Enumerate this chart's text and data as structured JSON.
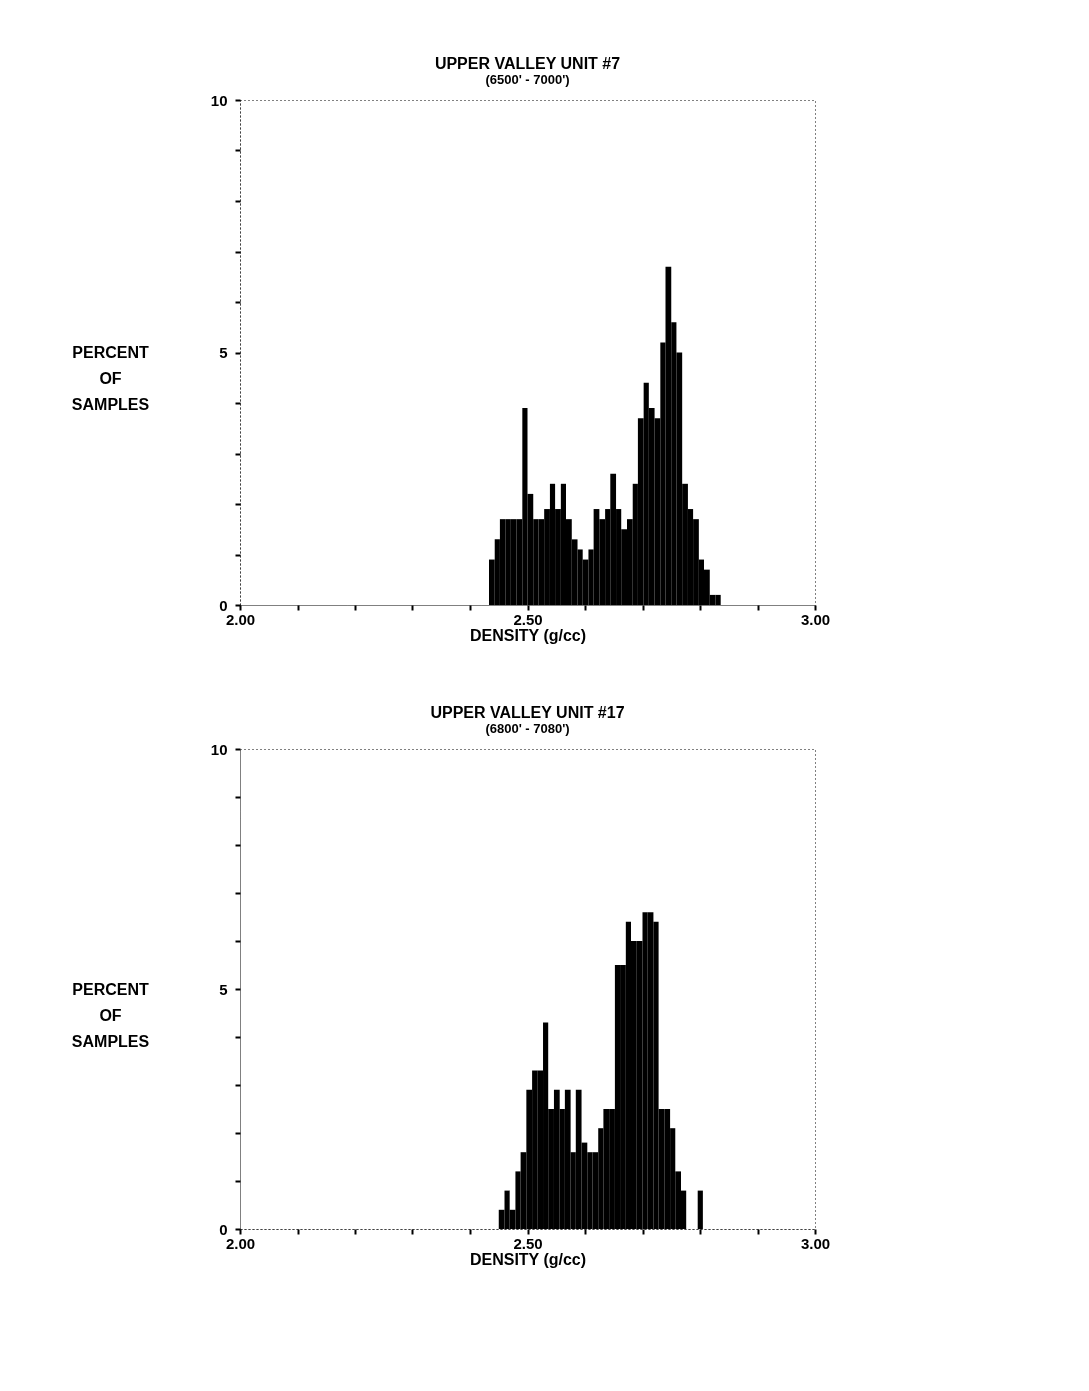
{
  "chart_data": [
    {
      "type": "histogram",
      "title": "UPPER VALLEY UNIT #7",
      "subtitle": "(6500' - 7000')",
      "xlabel": "DENSITY (g/cc)",
      "ylabel": "PERCENT OF SAMPLES",
      "color": "#000000",
      "bins": [
        2.433,
        2.443,
        2.452,
        2.462,
        2.471,
        2.481,
        2.491,
        2.5,
        2.51,
        2.519,
        2.529,
        2.539,
        2.548,
        2.558,
        2.567,
        2.577,
        2.587,
        2.596,
        2.606,
        2.615,
        2.625,
        2.635,
        2.644,
        2.654,
        2.663,
        2.673,
        2.683,
        2.692,
        2.702,
        2.711,
        2.721,
        2.731,
        2.74,
        2.75,
        2.759,
        2.769,
        2.779,
        2.788,
        2.798,
        2.807,
        2.817,
        2.827,
        2.836
      ],
      "values": [
        0.9,
        1.3,
        1.7,
        1.7,
        1.7,
        1.7,
        3.9,
        2.2,
        1.7,
        1.7,
        1.9,
        2.4,
        1.9,
        2.4,
        1.7,
        1.3,
        1.1,
        0.9,
        1.1,
        1.9,
        1.7,
        1.9,
        2.6,
        1.9,
        1.5,
        1.7,
        2.4,
        3.7,
        4.4,
        3.9,
        3.7,
        5.2,
        6.7,
        5.6,
        5.0,
        2.4,
        1.9,
        1.7,
        0.9,
        0.7,
        0.2,
        0.2
      ],
      "xlim": [
        2,
        3
      ],
      "xticks": [
        {
          "value": 2,
          "label": "2.00"
        },
        {
          "value": 2.1,
          "label": null
        },
        {
          "value": 2.2,
          "label": null
        },
        {
          "value": 2.3,
          "label": null
        },
        {
          "value": 2.4,
          "label": null
        },
        {
          "value": 2.5,
          "label": "2.50"
        },
        {
          "value": 2.6,
          "label": null
        },
        {
          "value": 2.7,
          "label": null
        },
        {
          "value": 2.8,
          "label": null
        },
        {
          "value": 2.9,
          "label": null
        },
        {
          "value": 3,
          "label": "3.00"
        }
      ],
      "ylim": [
        0,
        10
      ],
      "yticks": [
        0,
        {
          "value": 1,
          "label": null
        },
        {
          "value": 2,
          "label": null
        },
        {
          "value": 3,
          "label": null
        },
        {
          "value": 4,
          "label": null
        },
        5,
        {
          "value": 6,
          "label": null
        },
        {
          "value": 7,
          "label": null
        },
        {
          "value": 8,
          "label": null
        },
        {
          "value": 9,
          "label": null
        },
        10
      ]
    },
    {
      "type": "histogram",
      "title": "UPPER VALLEY UNIT #17",
      "subtitle": "(6800' - 7080')",
      "xlabel": "DENSITY (g/cc)",
      "ylabel": "PERCENT OF SAMPLES",
      "color": "#000000",
      "bins": [
        2.45,
        2.46,
        2.469,
        2.479,
        2.488,
        2.498,
        2.508,
        2.517,
        2.527,
        2.536,
        2.546,
        2.556,
        2.565,
        2.575,
        2.584,
        2.594,
        2.604,
        2.613,
        2.623,
        2.632,
        2.642,
        2.652,
        2.661,
        2.671,
        2.68,
        2.69,
        2.7,
        2.709,
        2.719,
        2.728,
        2.738,
        2.748,
        2.757,
        2.767,
        2.776,
        2.796,
        2.805
      ],
      "values": [
        0.4,
        0.8,
        0.4,
        1.2,
        1.6,
        2.9,
        3.3,
        3.3,
        4.3,
        2.5,
        2.9,
        2.5,
        2.9,
        1.6,
        2.9,
        1.8,
        1.6,
        1.6,
        2.1,
        2.5,
        2.5,
        5.5,
        5.5,
        6.4,
        6.0,
        6.0,
        6.6,
        6.6,
        6.4,
        2.5,
        2.5,
        2.1,
        1.2,
        0.8,
        0,
        0.8
      ],
      "xlim": [
        2,
        3
      ],
      "xticks": [
        {
          "value": 2,
          "label": "2.00"
        },
        {
          "value": 2.1,
          "label": null
        },
        {
          "value": 2.2,
          "label": null
        },
        {
          "value": 2.3,
          "label": null
        },
        {
          "value": 2.4,
          "label": null
        },
        {
          "value": 2.5,
          "label": "2.50"
        },
        {
          "value": 2.6,
          "label": null
        },
        {
          "value": 2.7,
          "label": null
        },
        {
          "value": 2.8,
          "label": null
        },
        {
          "value": 2.9,
          "label": null
        },
        {
          "value": 3,
          "label": "3.00"
        }
      ],
      "ylim": [
        0,
        10
      ],
      "yticks": [
        0,
        {
          "value": 1,
          "label": null
        },
        {
          "value": 2,
          "label": null
        },
        {
          "value": 3,
          "label": null
        },
        {
          "value": 4,
          "label": null
        },
        5,
        {
          "value": 6,
          "label": null
        },
        {
          "value": 7,
          "label": null
        },
        {
          "value": 8,
          "label": null
        },
        {
          "value": 9,
          "label": null
        },
        10
      ]
    }
  ]
}
